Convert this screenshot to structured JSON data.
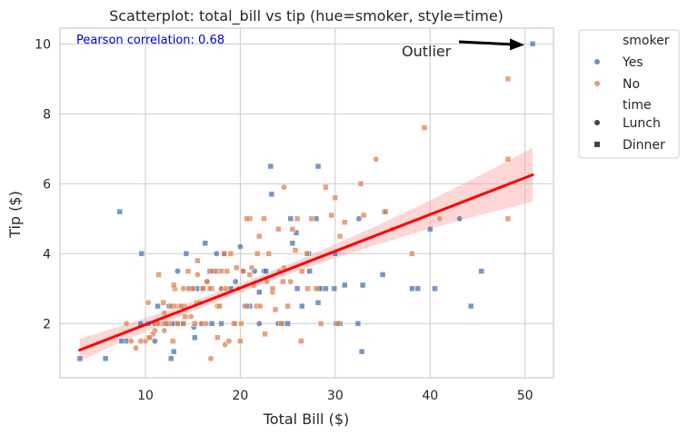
{
  "chart_data": {
    "type": "scatter",
    "title": "Scatterplot: total_bill vs tip (hue=smoker, style=time)",
    "xlabel": "Total Bill ($)",
    "ylabel": "Tip ($)",
    "xlim": [
      1,
      53
    ],
    "ylim": [
      0.45,
      10.45
    ],
    "xticks": [
      10,
      20,
      30,
      40,
      50
    ],
    "yticks": [
      2,
      4,
      6,
      8,
      10
    ],
    "grid": true,
    "legend_placement": "outside-top-right",
    "legend": {
      "hue_title": "smoker",
      "hue_entries": [
        {
          "label": "Yes",
          "color": "#4c72b0"
        },
        {
          "label": "No",
          "color": "#dd8452"
        }
      ],
      "style_title": "time",
      "style_entries": [
        {
          "label": "Lunch",
          "marker": "circle"
        },
        {
          "label": "Dinner",
          "marker": "square"
        }
      ]
    },
    "annotation": {
      "text": "Pearson correlation: 0.68",
      "color": "#0000cc"
    },
    "outlier": {
      "text": "Outlier",
      "point": [
        50.8,
        10.0
      ]
    },
    "regression": {
      "color": "#ff0000",
      "band_color": "#ff9999",
      "x_range": [
        3.07,
        50.81
      ],
      "slope": 0.105,
      "intercept": 0.92,
      "ci_halfwidth_ends": [
        0.32,
        0.78
      ],
      "ci_halfwidth_center": 0.13,
      "ci_center_x": 19.8
    },
    "series": [
      {
        "name": "Yes",
        "color": "#4c72b0",
        "points": [
          [
            15.1,
            1.9,
            "L"
          ],
          [
            16.0,
            2.0,
            "L"
          ],
          [
            12.7,
            2.0,
            "L"
          ],
          [
            13.4,
            3.5,
            "L"
          ],
          [
            20.0,
            4.2,
            "L"
          ],
          [
            11.0,
            2.0,
            "L"
          ],
          [
            16.5,
            3.2,
            "L"
          ],
          [
            13.0,
            2.0,
            "L"
          ],
          [
            12.5,
            2.5,
            "L"
          ],
          [
            32.5,
            5.0,
            "L"
          ],
          [
            43.1,
            5.0,
            "L"
          ],
          [
            22.0,
            2.0,
            "L"
          ],
          [
            18.0,
            3.0,
            "L"
          ],
          [
            24.0,
            2.0,
            "L"
          ],
          [
            11.0,
            1.5,
            "L"
          ],
          [
            12.3,
            2.0,
            "L"
          ],
          [
            21.5,
            3.5,
            "L"
          ],
          [
            19.5,
            3.2,
            "L"
          ],
          [
            20.5,
            2.5,
            "L"
          ],
          [
            17.5,
            4.0,
            "L"
          ],
          [
            8.0,
            1.5,
            "L"
          ],
          [
            15.5,
            3.0,
            "L"
          ],
          [
            22.5,
            3.5,
            "L"
          ],
          [
            50.8,
            10.0,
            "D"
          ],
          [
            7.3,
            5.2,
            "D"
          ],
          [
            3.1,
            1.0,
            "D"
          ],
          [
            5.8,
            1.0,
            "D"
          ],
          [
            7.5,
            1.5,
            "D"
          ],
          [
            9.6,
            4.0,
            "D"
          ],
          [
            10.3,
            2.0,
            "D"
          ],
          [
            11.3,
            2.5,
            "D"
          ],
          [
            12.7,
            1.0,
            "D"
          ],
          [
            13.0,
            1.2,
            "D"
          ],
          [
            13.4,
            2.0,
            "D"
          ],
          [
            14.0,
            2.0,
            "D"
          ],
          [
            14.3,
            4.0,
            "D"
          ],
          [
            15.0,
            3.0,
            "D"
          ],
          [
            15.2,
            1.6,
            "D"
          ],
          [
            16.0,
            3.0,
            "D"
          ],
          [
            16.3,
            4.3,
            "D"
          ],
          [
            17.0,
            2.0,
            "D"
          ],
          [
            17.5,
            3.5,
            "D"
          ],
          [
            18.3,
            4.0,
            "D"
          ],
          [
            19.0,
            3.0,
            "D"
          ],
          [
            20.3,
            3.5,
            "D"
          ],
          [
            21.0,
            2.5,
            "D"
          ],
          [
            22.0,
            2.9,
            "D"
          ],
          [
            22.7,
            3.5,
            "D"
          ],
          [
            23.2,
            6.5,
            "D"
          ],
          [
            23.3,
            5.7,
            "D"
          ],
          [
            24.5,
            2.0,
            "D"
          ],
          [
            25.0,
            2.0,
            "D"
          ],
          [
            25.3,
            5.0,
            "D"
          ],
          [
            25.5,
            4.3,
            "D"
          ],
          [
            26.0,
            3.0,
            "D"
          ],
          [
            26.5,
            2.5,
            "D"
          ],
          [
            27.2,
            4.0,
            "D"
          ],
          [
            27.3,
            3.5,
            "D"
          ],
          [
            28.2,
            6.5,
            "D"
          ],
          [
            28.5,
            3.0,
            "D"
          ],
          [
            29.0,
            3.0,
            "D"
          ],
          [
            28.2,
            2.6,
            "D"
          ],
          [
            28.3,
            3.0,
            "D"
          ],
          [
            30.0,
            4.0,
            "D"
          ],
          [
            30.1,
            2.0,
            "D"
          ],
          [
            30.5,
            2.0,
            "D"
          ],
          [
            31.0,
            3.1,
            "D"
          ],
          [
            32.4,
            2.0,
            "D"
          ],
          [
            32.9,
            3.1,
            "D"
          ],
          [
            32.8,
            1.2,
            "D"
          ],
          [
            35.0,
            3.4,
            "D"
          ],
          [
            38.1,
            3.0,
            "D"
          ],
          [
            38.7,
            3.0,
            "D"
          ],
          [
            40.0,
            4.7,
            "D"
          ],
          [
            40.5,
            3.0,
            "D"
          ],
          [
            44.3,
            2.5,
            "D"
          ],
          [
            45.4,
            3.5,
            "D"
          ],
          [
            29.9,
            3.0,
            "D"
          ],
          [
            28.0,
            5.0,
            "D"
          ],
          [
            25.9,
            4.6,
            "D"
          ],
          [
            14.8,
            3.0,
            "D"
          ],
          [
            12.0,
            2.0,
            "D"
          ],
          [
            16.8,
            3.5,
            "D"
          ],
          [
            18.0,
            2.0,
            "D"
          ],
          [
            9.5,
            2.0,
            "D"
          ],
          [
            35.2,
            5.2,
            "D"
          ]
        ]
      },
      {
        "name": "No",
        "color": "#dd8452",
        "points": [
          [
            48.2,
            9.0,
            "D"
          ],
          [
            39.4,
            7.6,
            "D"
          ],
          [
            34.3,
            6.7,
            "L"
          ],
          [
            48.2,
            6.7,
            "D"
          ],
          [
            29.0,
            5.9,
            "D"
          ],
          [
            30.0,
            5.6,
            "D"
          ],
          [
            32.7,
            6.0,
            "D"
          ],
          [
            24.6,
            5.9,
            "L"
          ],
          [
            33.0,
            5.1,
            "D"
          ],
          [
            35.3,
            5.2,
            "D"
          ],
          [
            36.0,
            4.7,
            "L"
          ],
          [
            41.0,
            5.0,
            "L"
          ],
          [
            48.2,
            5.0,
            "D"
          ],
          [
            38.1,
            4.0,
            "D"
          ],
          [
            30.5,
            4.5,
            "D"
          ],
          [
            27.5,
            5.0,
            "D"
          ],
          [
            27.0,
            4.0,
            "D"
          ],
          [
            26.0,
            5.0,
            "D"
          ],
          [
            25.5,
            4.7,
            "D"
          ],
          [
            24.0,
            4.7,
            "D"
          ],
          [
            23.0,
            4.0,
            "D"
          ],
          [
            22.5,
            5.0,
            "D"
          ],
          [
            21.0,
            5.0,
            "D"
          ],
          [
            20.7,
            5.0,
            "D"
          ],
          [
            19.0,
            4.0,
            "D"
          ],
          [
            18.3,
            4.0,
            "D"
          ],
          [
            18.0,
            3.5,
            "D"
          ],
          [
            17.3,
            3.5,
            "L"
          ],
          [
            17.0,
            3.5,
            "L"
          ],
          [
            16.5,
            3.2,
            "L"
          ],
          [
            16.0,
            3.0,
            "L"
          ],
          [
            15.5,
            3.4,
            "L"
          ],
          [
            15.0,
            3.0,
            "L"
          ],
          [
            14.5,
            3.0,
            "L"
          ],
          [
            14.0,
            3.0,
            "L"
          ],
          [
            13.5,
            2.5,
            "L"
          ],
          [
            13.0,
            2.5,
            "L"
          ],
          [
            12.5,
            2.0,
            "L"
          ],
          [
            12.0,
            1.8,
            "L"
          ],
          [
            11.5,
            2.0,
            "L"
          ],
          [
            11.0,
            1.8,
            "L"
          ],
          [
            10.5,
            1.6,
            "L"
          ],
          [
            10.0,
            1.5,
            "L"
          ],
          [
            9.5,
            1.5,
            "L"
          ],
          [
            9.0,
            1.3,
            "L"
          ],
          [
            8.5,
            1.5,
            "L"
          ],
          [
            8.0,
            2.0,
            "L"
          ],
          [
            10.3,
            2.6,
            "L"
          ],
          [
            10.8,
            1.7,
            "L"
          ],
          [
            11.3,
            2.0,
            "L"
          ],
          [
            12.0,
            2.3,
            "L"
          ],
          [
            12.7,
            2.5,
            "L"
          ],
          [
            13.4,
            2.0,
            "L"
          ],
          [
            14.1,
            2.5,
            "L"
          ],
          [
            14.8,
            2.2,
            "L"
          ],
          [
            15.4,
            2.6,
            "L"
          ],
          [
            15.9,
            2.0,
            "L"
          ],
          [
            16.4,
            2.0,
            "L"
          ],
          [
            16.9,
            1.0,
            "L"
          ],
          [
            17.6,
            2.5,
            "L"
          ],
          [
            18.0,
            3.0,
            "L"
          ],
          [
            18.4,
            1.4,
            "L"
          ],
          [
            18.8,
            1.5,
            "L"
          ],
          [
            19.3,
            2.0,
            "L"
          ],
          [
            19.8,
            3.0,
            "L"
          ],
          [
            20.3,
            3.5,
            "L"
          ],
          [
            20.7,
            2.5,
            "L"
          ],
          [
            21.2,
            3.6,
            "L"
          ],
          [
            21.7,
            2.5,
            "L"
          ],
          [
            22.1,
            2.5,
            "L"
          ],
          [
            22.8,
            3.2,
            "L"
          ],
          [
            23.4,
            2.9,
            "L"
          ],
          [
            24.1,
            3.5,
            "L"
          ],
          [
            24.6,
            3.6,
            "L"
          ],
          [
            25.3,
            3.2,
            "L"
          ],
          [
            12.2,
            2.0,
            "D"
          ],
          [
            13.1,
            3.0,
            "D"
          ],
          [
            13.8,
            2.5,
            "D"
          ],
          [
            14.5,
            3.5,
            "D"
          ],
          [
            15.2,
            2.0,
            "D"
          ],
          [
            16.1,
            3.0,
            "D"
          ],
          [
            17.0,
            3.0,
            "D"
          ],
          [
            17.8,
            2.5,
            "D"
          ],
          [
            18.6,
            3.5,
            "D"
          ],
          [
            19.4,
            2.0,
            "D"
          ],
          [
            20.1,
            2.0,
            "D"
          ],
          [
            21.0,
            3.4,
            "D"
          ],
          [
            21.8,
            4.0,
            "D"
          ],
          [
            22.6,
            1.7,
            "D"
          ],
          [
            23.4,
            3.0,
            "D"
          ],
          [
            24.3,
            2.0,
            "D"
          ],
          [
            25.0,
            2.5,
            "D"
          ],
          [
            25.8,
            4.1,
            "D"
          ],
          [
            26.4,
            1.5,
            "D"
          ],
          [
            27.1,
            3.0,
            "D"
          ],
          [
            28.5,
            2.0,
            "D"
          ],
          [
            29.6,
            5.1,
            "D"
          ],
          [
            30.3,
            2.0,
            "D"
          ],
          [
            31.0,
            4.9,
            "D"
          ],
          [
            14.2,
            2.2,
            "D"
          ],
          [
            10.4,
            1.6,
            "D"
          ],
          [
            11.9,
            2.6,
            "D"
          ],
          [
            13.0,
            3.1,
            "D"
          ],
          [
            14.0,
            2.0,
            "D"
          ],
          [
            15.5,
            3.8,
            "D"
          ],
          [
            16.8,
            3.0,
            "D"
          ],
          [
            18.5,
            3.0,
            "D"
          ],
          [
            20.0,
            1.5,
            "D"
          ],
          [
            22.0,
            4.5,
            "D"
          ],
          [
            24.5,
            3.2,
            "D"
          ],
          [
            26.5,
            3.5,
            "D"
          ],
          [
            28.0,
            3.0,
            "D"
          ],
          [
            17.6,
            1.6,
            "D"
          ],
          [
            19.6,
            3.6,
            "D"
          ],
          [
            21.4,
            3.1,
            "D"
          ],
          [
            23.7,
            2.4,
            "D"
          ],
          [
            15.7,
            2.6,
            "D"
          ],
          [
            12.9,
            1.5,
            "D"
          ],
          [
            11.4,
            3.4,
            "D"
          ]
        ]
      }
    ]
  }
}
